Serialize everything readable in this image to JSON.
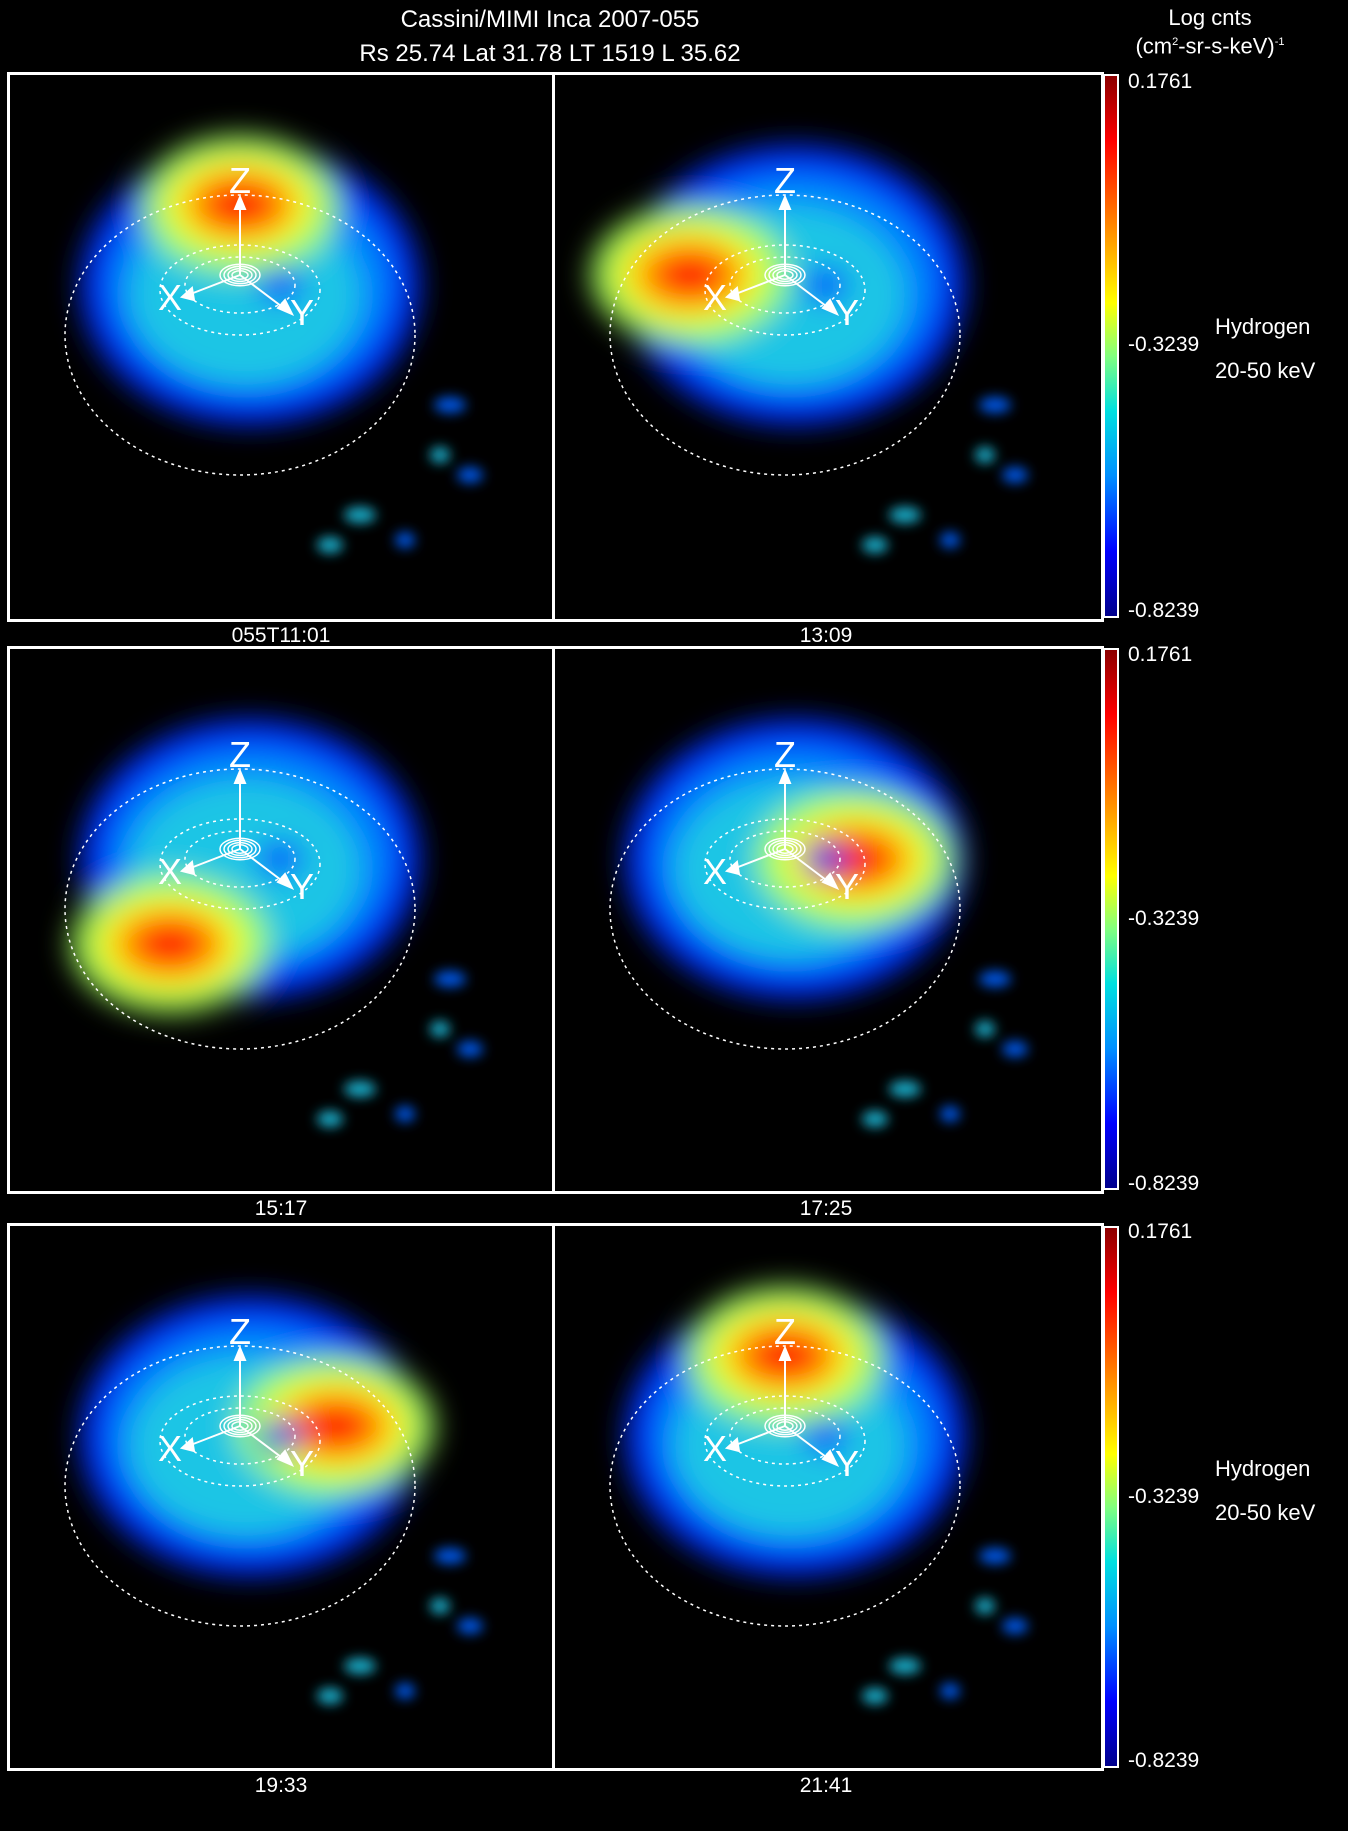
{
  "header": {
    "title_line1": "Cassini/MIMI Inca   2007-055",
    "title_line2": "Rs 25.74 Lat 31.78 LT 1519 L 35.62",
    "units_top": "Log cnts",
    "units_base": "(cm",
    "units_sup1": "2",
    "units_mid": "-sr-s-keV)",
    "units_sup2": "-1"
  },
  "panels": [
    {
      "time": "055T11:01",
      "hotspot": "top"
    },
    {
      "time": "13:09",
      "hotspot": "left"
    },
    {
      "time": "15:17",
      "hotspot": "lower-left"
    },
    {
      "time": "17:25",
      "hotspot": "right"
    },
    {
      "time": "19:33",
      "hotspot": "upper-right"
    },
    {
      "time": "21:41",
      "hotspot": "top"
    }
  ],
  "axes_labels": {
    "z": "Z",
    "x": "X",
    "y": "Y"
  },
  "colorbar": {
    "max": "0.1761",
    "mid": "-0.3239",
    "min": "-0.8239",
    "colors": {
      "high": "#ff0000",
      "mid": "#00e0e0",
      "low": "#00008b"
    }
  },
  "species": {
    "name": "Hydrogen",
    "energy": "20-50 keV"
  }
}
